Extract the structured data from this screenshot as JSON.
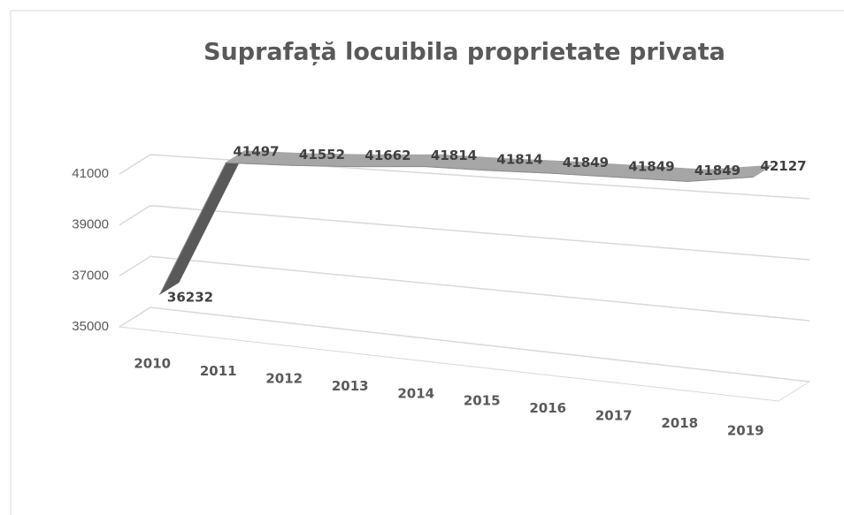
{
  "chart_data": {
    "type": "line3d",
    "title": "Suprafață locuibila proprietate privata",
    "categories": [
      "2010",
      "2011",
      "2012",
      "2013",
      "2014",
      "2015",
      "2016",
      "2017",
      "2018",
      "2019"
    ],
    "values": [
      36232,
      41497,
      41552,
      41662,
      41814,
      41814,
      41849,
      41849,
      41849,
      42127
    ],
    "color": "#a6a6a6",
    "ylim": [
      35000,
      42000
    ],
    "yticks": [
      35000,
      37000,
      39000,
      41000
    ],
    "grid": true
  }
}
